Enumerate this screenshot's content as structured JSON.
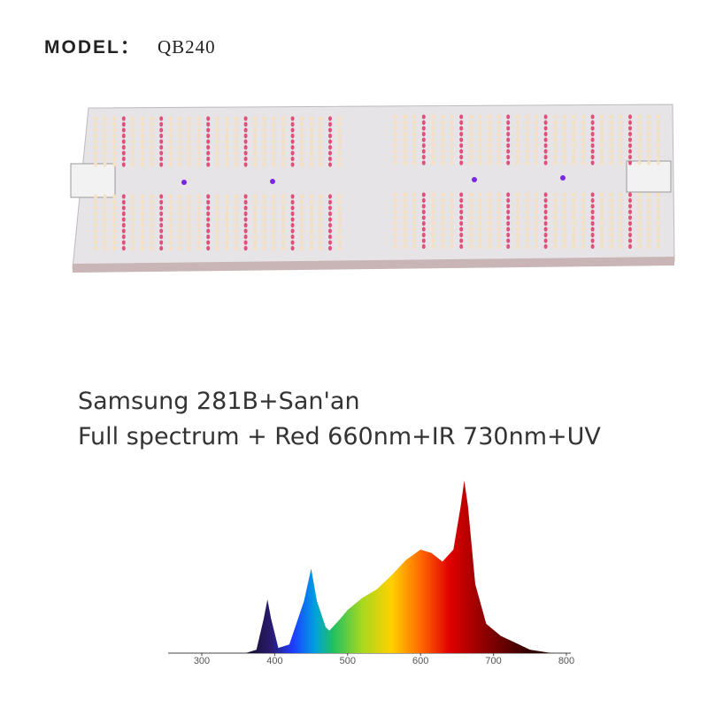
{
  "header": {
    "label": "MODEL：",
    "model": "QB240"
  },
  "chart_data": {
    "type": "area",
    "title": "Samsung 281B+San'an",
    "subtitle": "Full spectrum + Red 660nm+IR 730nm+UV",
    "x": [
      360,
      375,
      385,
      390,
      395,
      405,
      420,
      440,
      450,
      458,
      470,
      475,
      490,
      500,
      520,
      540,
      560,
      580,
      600,
      615,
      630,
      645,
      655,
      660,
      665,
      675,
      690,
      710,
      730,
      750,
      780
    ],
    "values": [
      0,
      2,
      20,
      31,
      20,
      3,
      5,
      30,
      49,
      30,
      15,
      13,
      20,
      25,
      32,
      37,
      45,
      54,
      60,
      58,
      53,
      60,
      85,
      100,
      85,
      40,
      17,
      10,
      6,
      2,
      0
    ],
    "xlim": [
      300,
      800
    ],
    "xticks": [
      300,
      400,
      500,
      600,
      700,
      800
    ],
    "ylim": [
      0,
      100
    ]
  }
}
